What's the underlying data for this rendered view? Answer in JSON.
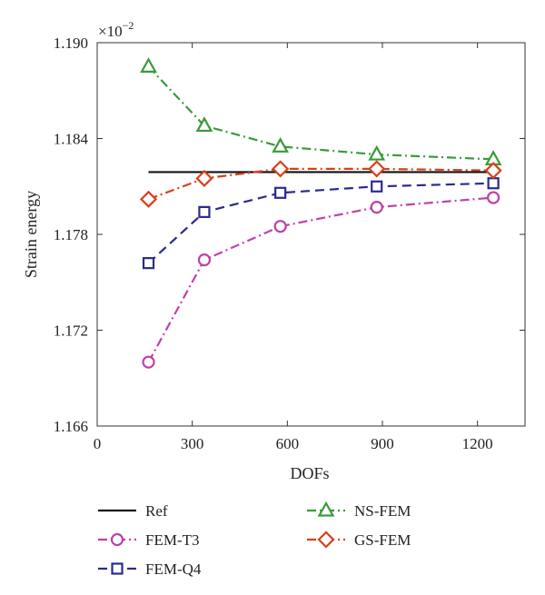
{
  "chart_data": {
    "type": "line",
    "xlabel": "DOFs",
    "ylabel": "Strain energy",
    "y_multiplier": "×10",
    "y_multiplier_exp": "−2",
    "xlim": [
      0,
      1350
    ],
    "ylim": [
      1.166,
      1.19
    ],
    "xticks": [
      0,
      300,
      600,
      900,
      1200
    ],
    "xtick_labels": [
      "0",
      "300",
      "600",
      "900",
      "1200"
    ],
    "yticks": [
      1.166,
      1.172,
      1.178,
      1.184,
      1.19
    ],
    "ytick_labels": [
      "1.166",
      "1.172",
      "1.178",
      "1.184",
      "1.190"
    ],
    "grid": false,
    "legend_position": "bottom",
    "series": [
      {
        "name": "Ref",
        "color": "#111111",
        "dash": "solid",
        "marker": "none",
        "x": [
          162,
          1250
        ],
        "y": [
          1.1819,
          1.1819
        ]
      },
      {
        "name": "FEM-T3",
        "color": "#c040a8",
        "dash": "dashdot",
        "marker": "circle",
        "x": [
          162,
          338,
          578,
          882,
          1250
        ],
        "y": [
          1.17,
          1.1764,
          1.1785,
          1.1797,
          1.1803
        ]
      },
      {
        "name": "FEM-Q4",
        "color": "#2a2a90",
        "dash": "dashed",
        "marker": "square",
        "x": [
          162,
          338,
          578,
          882,
          1250
        ],
        "y": [
          1.1762,
          1.1794,
          1.1806,
          1.181,
          1.1812
        ]
      },
      {
        "name": "NS-FEM",
        "color": "#3a9a3a",
        "dash": "dashdot",
        "marker": "triangle",
        "x": [
          162,
          338,
          578,
          882,
          1250
        ],
        "y": [
          1.1885,
          1.1848,
          1.1835,
          1.183,
          1.1827
        ]
      },
      {
        "name": "GS-FEM",
        "color": "#d84018",
        "dash": "dashdot",
        "marker": "diamond",
        "x": [
          162,
          338,
          578,
          882,
          1250
        ],
        "y": [
          1.1802,
          1.1815,
          1.1821,
          1.1821,
          1.182
        ]
      }
    ]
  }
}
